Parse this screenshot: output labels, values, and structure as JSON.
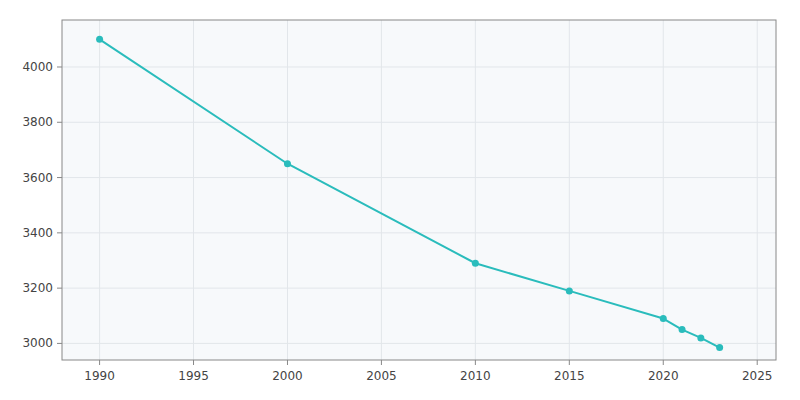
{
  "chart_data": {
    "type": "line",
    "x": [
      1990,
      2000,
      2010,
      2015,
      2020,
      2021,
      2022,
      2023
    ],
    "values": [
      4100,
      3650,
      3290,
      3190,
      3090,
      3050,
      3020,
      2985
    ],
    "color": "#2abcbc",
    "marker": "circle",
    "xlim": [
      1988,
      2026
    ],
    "ylim": [
      2940,
      4170
    ],
    "xticks": [
      1990,
      1995,
      2000,
      2005,
      2010,
      2015,
      2020,
      2025
    ],
    "yticks": [
      3000,
      3200,
      3400,
      3600,
      3800,
      4000
    ],
    "grid": true
  }
}
